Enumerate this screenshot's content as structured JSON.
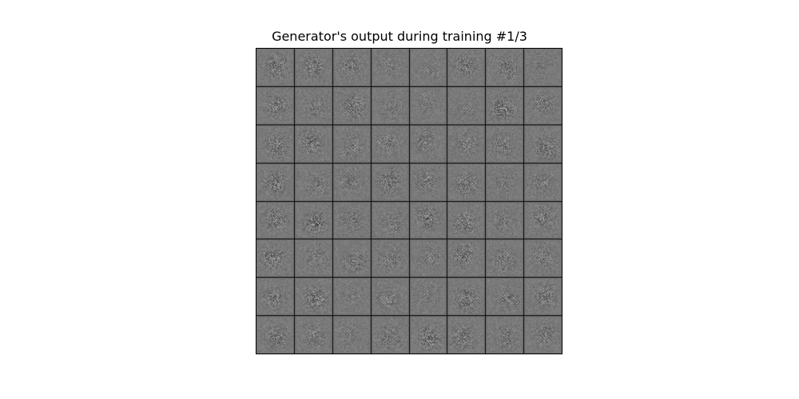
{
  "figure": {
    "title": "Generator's output during training #1/3"
  },
  "image_grid": {
    "rows": 8,
    "cols": 8,
    "content": "generated noise samples, grayscale"
  },
  "colors": {
    "background": "#ffffff",
    "grid_lines": "#000000",
    "sample_mid_gray": "#7a7a7a"
  }
}
